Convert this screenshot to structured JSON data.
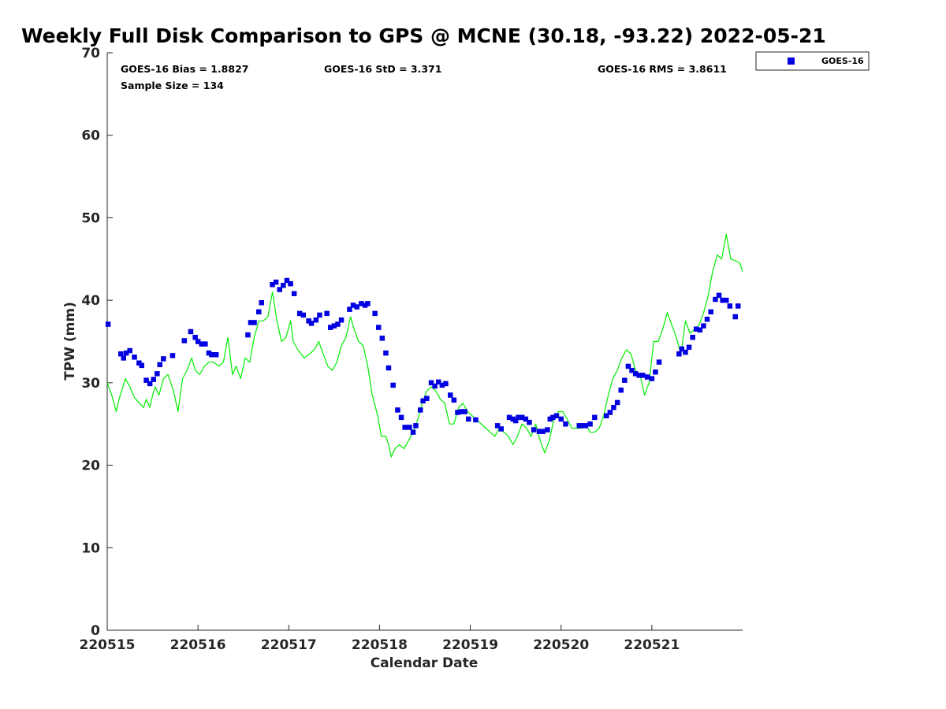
{
  "chart_data": {
    "type": "scatter",
    "title": "Weekly Full Disk Comparison to GPS @ MCNE (30.18, -93.22) 2022-05-21",
    "xlabel": "Calendar Date",
    "ylabel": "TPW (mm)",
    "xlim": [
      0,
      7
    ],
    "ylim": [
      0,
      70
    ],
    "yticks": [
      0,
      10,
      20,
      30,
      40,
      50,
      60,
      70
    ],
    "xticks": [
      {
        "value": 0,
        "label": "220515"
      },
      {
        "value": 1,
        "label": "220516"
      },
      {
        "value": 2,
        "label": "220517"
      },
      {
        "value": 3,
        "label": "220518"
      },
      {
        "value": 4,
        "label": "220519"
      },
      {
        "value": 5,
        "label": "220520"
      },
      {
        "value": 6,
        "label": "220521"
      }
    ],
    "stats": {
      "bias": "GOES-16 Bias = 1.8827",
      "std": "GOES-16 StD = 3.371",
      "rms": "GOES-16 RMS = 3.8611",
      "sample": "Sample Size = 134"
    },
    "legend": {
      "position": "top-right",
      "entries": [
        {
          "name": "GOES-16",
          "marker": "square",
          "color": "#0000e0"
        }
      ]
    },
    "colors": {
      "goes": "#0000e0",
      "gps": "#00ee00",
      "axis": "#262626"
    },
    "series": [
      {
        "name": "GOES-16",
        "kind": "scatter",
        "x": [
          0.01,
          0.15,
          0.18,
          0.21,
          0.25,
          0.3,
          0.35,
          0.38,
          0.43,
          0.47,
          0.51,
          0.55,
          0.58,
          0.62,
          0.72,
          0.85,
          0.92,
          0.97,
          1.0,
          1.04,
          1.08,
          1.12,
          1.15,
          1.2,
          1.55,
          1.58,
          1.62,
          1.67,
          1.7,
          1.82,
          1.86,
          1.9,
          1.94,
          1.98,
          2.02,
          2.06,
          2.12,
          2.16,
          2.22,
          2.25,
          2.3,
          2.34,
          2.42,
          2.46,
          2.5,
          2.54,
          2.58,
          2.67,
          2.71,
          2.75,
          2.8,
          2.84,
          2.87,
          2.95,
          2.99,
          3.03,
          3.07,
          3.1,
          3.15,
          3.2,
          3.24,
          3.28,
          3.33,
          3.37,
          3.4,
          3.45,
          3.48,
          3.52,
          3.57,
          3.61,
          3.65,
          3.69,
          3.73,
          3.78,
          3.82,
          3.86,
          3.9,
          3.94,
          3.98,
          4.06,
          4.3,
          4.34,
          4.43,
          4.47,
          4.5,
          4.53,
          4.57,
          4.61,
          4.65,
          4.7,
          4.76,
          4.8,
          4.85,
          4.88,
          4.91,
          4.95,
          5.0,
          5.05,
          5.2,
          5.23,
          5.27,
          5.32,
          5.37,
          5.5,
          5.54,
          5.58,
          5.62,
          5.66,
          5.7,
          5.74,
          5.78,
          5.82,
          5.86,
          5.9,
          5.95,
          6.0,
          6.04,
          6.08,
          6.3,
          6.33,
          6.37,
          6.41,
          6.45,
          6.49,
          6.53,
          6.57,
          6.61,
          6.65,
          6.7,
          6.74,
          6.78,
          6.82,
          6.86,
          6.92,
          6.95
        ],
        "y": [
          37.1,
          33.5,
          33.0,
          33.6,
          33.9,
          33.1,
          32.4,
          32.1,
          30.3,
          29.9,
          30.4,
          31.1,
          32.2,
          32.9,
          33.3,
          35.1,
          36.2,
          35.5,
          35.0,
          34.7,
          34.7,
          33.6,
          33.4,
          33.4,
          35.8,
          37.3,
          37.3,
          38.6,
          39.7,
          41.9,
          42.2,
          41.3,
          41.8,
          42.4,
          42.0,
          40.8,
          38.4,
          38.2,
          37.5,
          37.2,
          37.6,
          38.2,
          38.4,
          36.7,
          36.9,
          37.1,
          37.6,
          38.9,
          39.4,
          39.2,
          39.6,
          39.4,
          39.6,
          38.4,
          36.7,
          35.4,
          33.6,
          31.8,
          29.7,
          26.7,
          25.8,
          24.6,
          24.6,
          24.0,
          24.8,
          26.7,
          27.8,
          28.1,
          30.0,
          29.6,
          30.1,
          29.7,
          29.9,
          28.5,
          27.9,
          26.4,
          26.5,
          26.5,
          25.6,
          25.5,
          24.8,
          24.4,
          25.8,
          25.6,
          25.4,
          25.8,
          25.8,
          25.6,
          25.2,
          24.3,
          24.1,
          24.1,
          24.3,
          25.6,
          25.8,
          26.0,
          25.6,
          25.0,
          24.8,
          24.8,
          24.8,
          25.0,
          25.8,
          26.0,
          26.4,
          27.0,
          27.6,
          29.1,
          30.3,
          32.0,
          31.5,
          31.1,
          30.9,
          30.9,
          30.7,
          30.5,
          31.3,
          32.5,
          33.5,
          34.1,
          33.7,
          34.3,
          35.5,
          36.5,
          36.4,
          36.9,
          37.7,
          38.6,
          40.1,
          40.6,
          40.0,
          40.0,
          39.3,
          38.0,
          39.3
        ]
      },
      {
        "name": "GPS",
        "kind": "line",
        "x": [
          0.0,
          0.05,
          0.1,
          0.13,
          0.2,
          0.25,
          0.3,
          0.4,
          0.43,
          0.47,
          0.5,
          0.53,
          0.57,
          0.62,
          0.67,
          0.73,
          0.78,
          0.83,
          0.88,
          0.93,
          0.97,
          1.02,
          1.07,
          1.12,
          1.17,
          1.23,
          1.28,
          1.33,
          1.38,
          1.42,
          1.47,
          1.52,
          1.57,
          1.62,
          1.67,
          1.72,
          1.77,
          1.82,
          1.87,
          1.92,
          1.97,
          2.02,
          2.05,
          2.1,
          2.17,
          2.23,
          2.28,
          2.33,
          2.38,
          2.43,
          2.48,
          2.53,
          2.58,
          2.63,
          2.68,
          2.72,
          2.77,
          2.82,
          2.87,
          2.92,
          2.98,
          3.02,
          3.07,
          3.1,
          3.13,
          3.17,
          3.22,
          3.27,
          3.32,
          3.37,
          3.42,
          3.47,
          3.52,
          3.57,
          3.62,
          3.67,
          3.72,
          3.77,
          3.82,
          3.87,
          3.92,
          3.97,
          4.02,
          4.07,
          4.12,
          4.17,
          4.22,
          4.27,
          4.32,
          4.37,
          4.42,
          4.47,
          4.52,
          4.57,
          4.62,
          4.67,
          4.72,
          4.77,
          4.82,
          4.87,
          4.92,
          4.97,
          5.02,
          5.07,
          5.12,
          5.17,
          5.22,
          5.27,
          5.32,
          5.37,
          5.42,
          5.47,
          5.52,
          5.57,
          5.62,
          5.67,
          5.72,
          5.77,
          5.82,
          5.87,
          5.92,
          5.97,
          6.02,
          6.07,
          6.12,
          6.17,
          6.22,
          6.27,
          6.32,
          6.37,
          6.42,
          6.47,
          6.52,
          6.57,
          6.62,
          6.67,
          6.72,
          6.77,
          6.82,
          6.87,
          6.92,
          6.97,
          7.0
        ],
        "y": [
          30.0,
          28.5,
          26.5,
          28.0,
          30.5,
          29.5,
          28.2,
          27.0,
          28.0,
          27.0,
          28.5,
          29.5,
          28.5,
          30.5,
          31.0,
          29.0,
          26.5,
          30.5,
          31.5,
          33.0,
          31.5,
          31.0,
          32.0,
          32.5,
          32.5,
          32.0,
          32.5,
          35.5,
          31.0,
          32.0,
          30.5,
          33.0,
          32.5,
          35.5,
          37.5,
          37.5,
          38.0,
          41.0,
          37.5,
          35.0,
          35.5,
          37.5,
          35.0,
          34.0,
          33.0,
          33.5,
          34.0,
          35.0,
          33.5,
          32.0,
          31.5,
          32.5,
          34.5,
          35.5,
          38.0,
          36.5,
          35.0,
          34.5,
          32.0,
          28.5,
          26.0,
          23.5,
          23.5,
          22.5,
          21.0,
          22.0,
          22.5,
          22.0,
          23.0,
          24.0,
          25.5,
          27.5,
          29.0,
          29.5,
          29.0,
          28.0,
          27.5,
          25.0,
          25.0,
          27.0,
          27.5,
          26.5,
          26.0,
          25.5,
          25.0,
          24.5,
          24.0,
          23.5,
          24.5,
          24.0,
          23.5,
          22.5,
          23.5,
          25.0,
          24.5,
          23.5,
          25.0,
          23.0,
          21.5,
          23.0,
          25.5,
          26.5,
          26.5,
          25.5,
          24.5,
          24.5,
          24.5,
          25.0,
          24.0,
          24.0,
          24.5,
          26.0,
          28.5,
          30.5,
          31.5,
          33.0,
          34.0,
          33.5,
          31.5,
          31.0,
          28.5,
          30.0,
          35.0,
          35.0,
          36.5,
          38.5,
          37.0,
          35.5,
          33.5,
          37.5,
          36.0,
          36.5,
          37.0,
          38.5,
          40.5,
          43.5,
          45.5,
          45.0,
          48.0,
          45.0,
          44.8,
          44.5,
          43.5
        ]
      }
    ]
  }
}
